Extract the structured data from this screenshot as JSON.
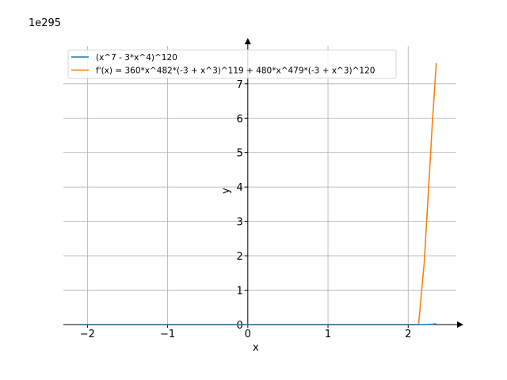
{
  "chart_data": {
    "type": "line",
    "title": "",
    "xlabel": "x",
    "ylabel": "y",
    "scale_label": "1e295",
    "xlim": [
      -2.3,
      2.6
    ],
    "ylim": [
      0,
      8.1
    ],
    "xticks": [
      -2,
      -1,
      0,
      1,
      2
    ],
    "xtick_labels": [
      "−2",
      "−1",
      "0",
      "1",
      "2"
    ],
    "yticks": [
      0,
      1,
      2,
      3,
      4,
      5,
      6,
      7
    ],
    "ytick_labels": [
      "0",
      "1",
      "2",
      "3",
      "4",
      "5",
      "6",
      "7"
    ],
    "grid": true,
    "legend_position": "top-left",
    "series": [
      {
        "name": "(x^7 - 3*x^4)^120",
        "color": "#1f77b4",
        "x": [
          -2.15,
          -1.5,
          -1.0,
          0.0,
          1.0,
          2.0,
          2.2,
          2.3,
          2.35
        ],
        "y": [
          0,
          0,
          0,
          0,
          0,
          0,
          0.0,
          0.01,
          0.02
        ]
      },
      {
        "name": "f'(x) = 360*x^482*(-3 + x^3)^119 + 480*x^479*(-3 + x^3)^120",
        "color": "#ff7f0e",
        "x": [
          -2.15,
          -1.5,
          -1.0,
          0.0,
          1.0,
          2.0,
          2.13,
          2.2,
          2.25,
          2.3,
          2.35
        ],
        "y": [
          0,
          0,
          0,
          0,
          0,
          0,
          0,
          1.8,
          3.8,
          5.8,
          7.6
        ]
      }
    ]
  }
}
